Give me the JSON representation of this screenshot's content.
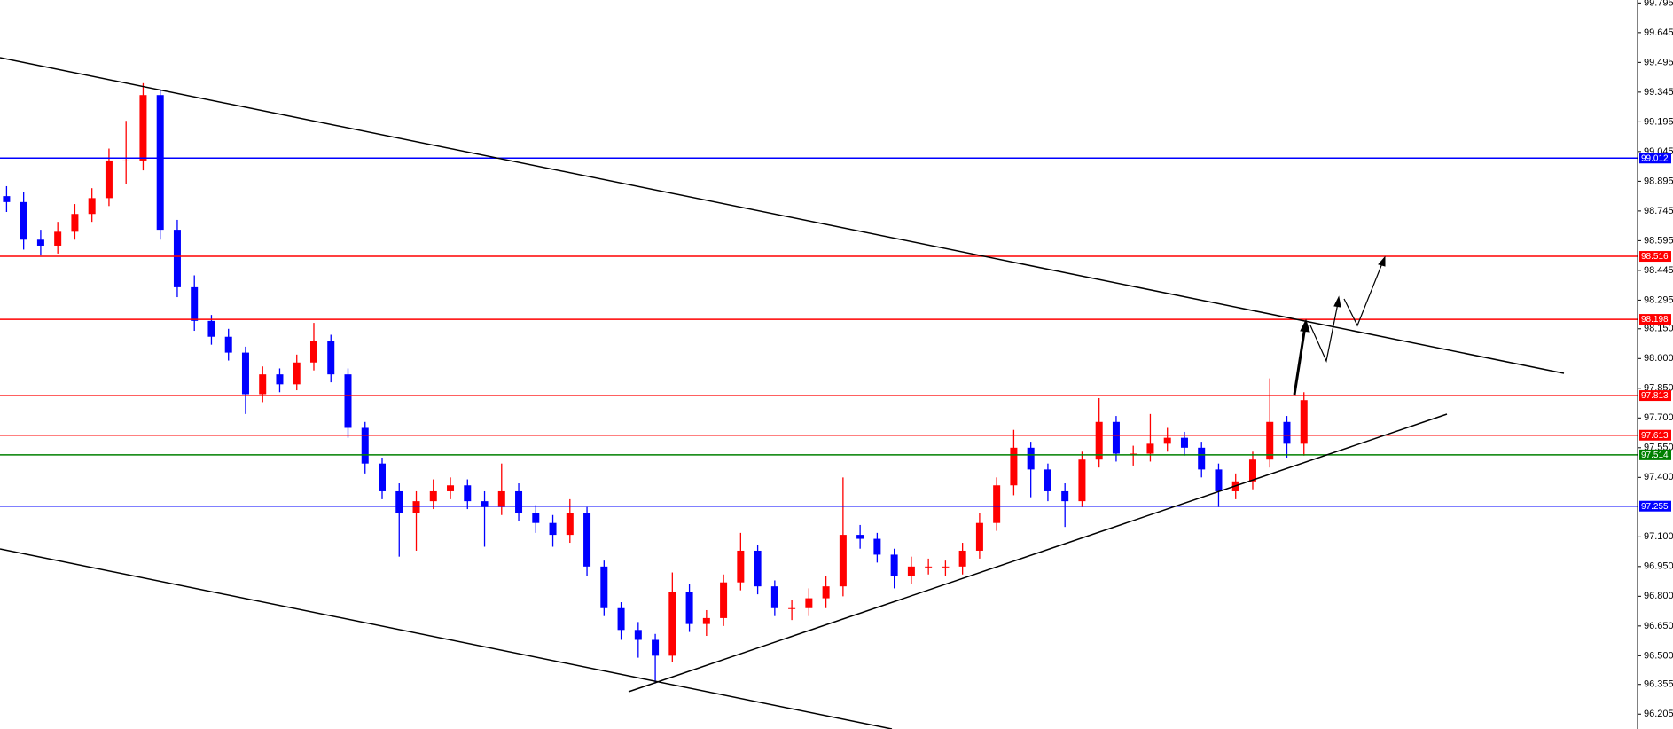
{
  "chart_data": {
    "type": "candlestick",
    "up_color": "#ff0000",
    "down_color": "#0000ff",
    "open": [
      98.82,
      98.79,
      98.6,
      98.57,
      98.64,
      98.73,
      98.81,
      99.0,
      99.0,
      99.33,
      98.65,
      98.36,
      98.19,
      98.11,
      98.03,
      97.82,
      97.92,
      97.87,
      97.98,
      98.09,
      97.92,
      97.65,
      97.47,
      97.33,
      97.22,
      97.28,
      97.33,
      97.36,
      97.28,
      97.25,
      97.33,
      97.22,
      97.17,
      97.11,
      97.22,
      96.95,
      96.74,
      96.63,
      96.58,
      96.5,
      96.82,
      96.66,
      96.69,
      96.87,
      97.03,
      96.85,
      96.74,
      96.74,
      96.79,
      96.85,
      97.11,
      97.09,
      97.01,
      96.9,
      96.95,
      96.95,
      96.95,
      97.03,
      97.17,
      97.36,
      97.55,
      97.44,
      97.33,
      97.28,
      97.49,
      97.68,
      97.52,
      97.52,
      97.57,
      97.6,
      97.55,
      97.44,
      97.33,
      97.38,
      97.49,
      97.68,
      97.57
    ],
    "high": [
      98.87,
      98.84,
      98.65,
      98.69,
      98.78,
      98.86,
      99.06,
      99.2,
      99.39,
      99.36,
      98.7,
      98.42,
      98.22,
      98.15,
      98.06,
      97.96,
      97.95,
      98.02,
      98.18,
      98.12,
      97.95,
      97.68,
      97.5,
      97.37,
      97.33,
      97.39,
      97.4,
      97.39,
      97.33,
      97.47,
      97.37,
      97.26,
      97.21,
      97.29,
      97.25,
      96.98,
      96.77,
      96.67,
      96.61,
      96.92,
      96.86,
      96.73,
      96.91,
      97.12,
      97.06,
      96.88,
      96.78,
      96.84,
      96.9,
      97.4,
      97.16,
      97.12,
      97.04,
      97.0,
      96.99,
      96.98,
      97.07,
      97.22,
      97.4,
      97.64,
      97.58,
      97.47,
      97.37,
      97.53,
      97.8,
      97.71,
      97.56,
      97.72,
      97.65,
      97.63,
      97.58,
      97.47,
      97.42,
      97.53,
      97.9,
      97.71,
      97.83
    ],
    "low": [
      98.74,
      98.55,
      98.52,
      98.53,
      98.6,
      98.69,
      98.77,
      98.88,
      98.95,
      98.6,
      98.31,
      98.14,
      98.07,
      97.99,
      97.72,
      97.78,
      97.83,
      97.84,
      97.94,
      97.88,
      97.6,
      97.42,
      97.29,
      97.0,
      97.03,
      97.24,
      97.29,
      97.24,
      97.05,
      97.21,
      97.18,
      97.12,
      97.05,
      97.07,
      96.9,
      96.7,
      96.58,
      96.49,
      96.36,
      96.47,
      96.62,
      96.6,
      96.65,
      96.83,
      96.81,
      96.7,
      96.68,
      96.7,
      96.74,
      96.8,
      97.04,
      96.97,
      96.84,
      96.86,
      96.91,
      96.9,
      96.91,
      96.99,
      97.13,
      97.31,
      97.3,
      97.28,
      97.15,
      97.25,
      97.45,
      97.48,
      97.46,
      97.48,
      97.53,
      97.51,
      97.4,
      97.25,
      97.29,
      97.34,
      97.45,
      97.5,
      97.51
    ],
    "close": [
      98.79,
      98.6,
      98.57,
      98.64,
      98.73,
      98.81,
      99.0,
      99.0,
      99.33,
      98.65,
      98.36,
      98.19,
      98.11,
      98.03,
      97.82,
      97.92,
      97.87,
      97.98,
      98.09,
      97.92,
      97.65,
      97.47,
      97.33,
      97.22,
      97.28,
      97.33,
      97.36,
      97.28,
      97.25,
      97.33,
      97.22,
      97.17,
      97.11,
      97.22,
      96.95,
      96.74,
      96.63,
      96.58,
      96.5,
      96.82,
      96.66,
      96.69,
      96.87,
      97.03,
      96.85,
      96.74,
      96.74,
      96.79,
      96.85,
      97.11,
      97.09,
      97.01,
      96.9,
      96.95,
      96.95,
      96.95,
      97.03,
      97.17,
      97.36,
      97.55,
      97.44,
      97.33,
      97.28,
      97.49,
      97.68,
      97.52,
      97.52,
      97.57,
      97.6,
      97.55,
      97.44,
      97.33,
      97.38,
      97.49,
      97.68,
      97.57,
      97.79
    ],
    "ylim": [
      96.13,
      99.81
    ],
    "yticks": [
      99.795,
      99.645,
      99.495,
      99.345,
      99.195,
      99.045,
      98.895,
      98.745,
      98.595,
      98.445,
      98.295,
      {
        "value": 98.15,
        "label": "98.150"
      },
      {
        "value": 98.0,
        "label": "98.000"
      },
      {
        "value": 97.85,
        "label": "97.850"
      },
      {
        "value": 97.7,
        "label": "97.700"
      },
      {
        "value": 97.55,
        "label": "97.550"
      },
      {
        "value": 97.4,
        "label": "97.400"
      },
      {
        "value": 97.1,
        "label": "97.100"
      },
      {
        "value": 96.95,
        "label": "96.950"
      },
      {
        "value": 96.8,
        "label": "96.800"
      },
      {
        "value": 96.65,
        "label": "96.650"
      },
      {
        "value": 96.5,
        "label": "96.500"
      },
      96.355,
      96.205
    ],
    "levels": [
      {
        "value": 99.012,
        "color": "#0000ff"
      },
      {
        "value": 98.516,
        "color": "#ff0000"
      },
      {
        "value": 98.198,
        "color": "#ff0000"
      },
      {
        "value": 97.813,
        "color": "#ff0000"
      },
      {
        "value": 97.613,
        "color": "#ff0000"
      },
      {
        "value": 97.514,
        "color": "#008000"
      },
      {
        "value": 97.255,
        "color": "#0000ff"
      }
    ]
  }
}
